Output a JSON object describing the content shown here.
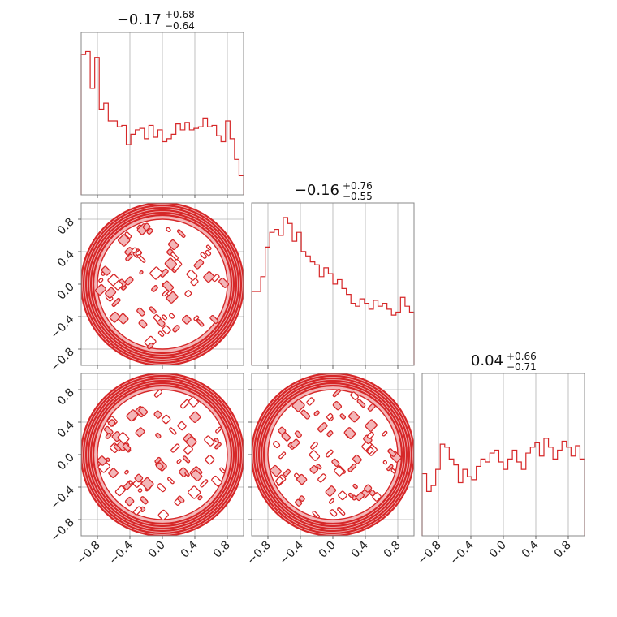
{
  "chart_data": {
    "type": "corner",
    "color": "#d62728",
    "fill_color": "#f3b6b8",
    "grid": true,
    "range": [
      -1,
      1
    ],
    "ticks": [
      -0.8,
      -0.4,
      0.0,
      0.4,
      0.8
    ],
    "tick_labels": [
      "−0.8",
      "−0.4",
      "0.0",
      "0.4",
      "0.8"
    ],
    "dimensions": [
      {
        "title_value": "−0.17",
        "title_plus": "+0.68",
        "title_minus": "−0.64",
        "histogram": [
          0.95,
          0.97,
          0.72,
          0.93,
          0.58,
          0.62,
          0.5,
          0.5,
          0.46,
          0.47,
          0.34,
          0.41,
          0.44,
          0.45,
          0.38,
          0.47,
          0.39,
          0.44,
          0.36,
          0.38,
          0.41,
          0.48,
          0.44,
          0.49,
          0.44,
          0.45,
          0.46,
          0.52,
          0.46,
          0.47,
          0.4,
          0.36,
          0.5,
          0.38,
          0.24,
          0.13
        ]
      },
      {
        "title_value": "−0.16",
        "title_plus": "+0.76",
        "title_minus": "−0.55",
        "histogram": [
          0.5,
          0.5,
          0.6,
          0.8,
          0.9,
          0.92,
          0.88,
          1.0,
          0.96,
          0.84,
          0.9,
          0.77,
          0.74,
          0.7,
          0.68,
          0.6,
          0.66,
          0.62,
          0.55,
          0.58,
          0.52,
          0.48,
          0.42,
          0.4,
          0.45,
          0.42,
          0.38,
          0.44,
          0.4,
          0.42,
          0.38,
          0.34,
          0.36,
          0.46,
          0.4,
          0.36
        ]
      },
      {
        "title_value": "0.04",
        "title_plus": "+0.66",
        "title_minus": "−0.71",
        "histogram": [
          0.42,
          0.3,
          0.34,
          0.45,
          0.62,
          0.6,
          0.52,
          0.48,
          0.36,
          0.45,
          0.4,
          0.38,
          0.47,
          0.52,
          0.5,
          0.56,
          0.58,
          0.5,
          0.45,
          0.52,
          0.58,
          0.5,
          0.45,
          0.56,
          0.6,
          0.63,
          0.54,
          0.66,
          0.6,
          0.52,
          0.58,
          0.64,
          0.6,
          0.54,
          0.61,
          0.52
        ]
      }
    ],
    "contour_panels": [
      {
        "x_dim": 1,
        "y_dim": 2
      },
      {
        "x_dim": 1,
        "y_dim": 3
      },
      {
        "x_dim": 2,
        "y_dim": 3
      }
    ],
    "contour_support": "uniform disc of radius 1",
    "x_tick_rotation_deg": 45,
    "y_tick_rotation_deg": 45
  }
}
